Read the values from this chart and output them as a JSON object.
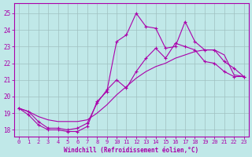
{
  "xlabel": "Windchill (Refroidissement éolien,°C)",
  "bg_color": "#c0e8e8",
  "grid_color": "#a0c0c0",
  "line_color": "#aa00aa",
  "xlim": [
    -0.5,
    23.5
  ],
  "ylim": [
    17.6,
    25.6
  ],
  "yticks": [
    18,
    19,
    20,
    21,
    22,
    23,
    24,
    25
  ],
  "xticks": [
    0,
    1,
    2,
    3,
    4,
    5,
    6,
    7,
    8,
    9,
    10,
    11,
    12,
    13,
    14,
    15,
    16,
    17,
    18,
    19,
    20,
    21,
    22,
    23
  ],
  "line1_x": [
    0,
    1,
    2,
    3,
    4,
    5,
    6,
    7,
    8,
    9,
    10,
    11,
    12,
    13,
    14,
    15,
    16,
    17,
    18,
    19,
    20,
    21,
    22,
    23
  ],
  "line1_y": [
    19.3,
    18.9,
    18.3,
    18.0,
    18.0,
    17.9,
    17.9,
    18.2,
    19.7,
    20.3,
    23.3,
    23.7,
    25.0,
    24.2,
    24.1,
    22.9,
    23.0,
    24.5,
    23.3,
    22.8,
    22.8,
    22.1,
    21.7,
    21.2
  ],
  "line2_x": [
    0,
    1,
    2,
    3,
    4,
    5,
    6,
    7,
    8,
    9,
    10,
    11,
    12,
    13,
    14,
    15,
    16,
    17,
    18,
    19,
    20,
    21,
    22,
    23
  ],
  "line2_y": [
    19.3,
    19.1,
    18.5,
    18.1,
    18.1,
    18.0,
    18.1,
    18.4,
    19.6,
    20.4,
    21.0,
    20.5,
    21.5,
    22.3,
    22.9,
    22.3,
    23.2,
    23.0,
    22.8,
    22.1,
    22.0,
    21.5,
    21.2,
    21.2
  ],
  "line3_x": [
    0,
    1,
    2,
    3,
    4,
    5,
    6,
    7,
    8,
    9,
    10,
    11,
    12,
    13,
    14,
    15,
    16,
    17,
    18,
    19,
    20,
    21,
    22,
    23
  ],
  "line3_y": [
    19.3,
    19.1,
    18.8,
    18.6,
    18.5,
    18.5,
    18.5,
    18.6,
    19.0,
    19.5,
    20.1,
    20.6,
    21.1,
    21.5,
    21.8,
    22.0,
    22.3,
    22.5,
    22.7,
    22.8,
    22.8,
    22.5,
    21.3,
    21.2
  ]
}
